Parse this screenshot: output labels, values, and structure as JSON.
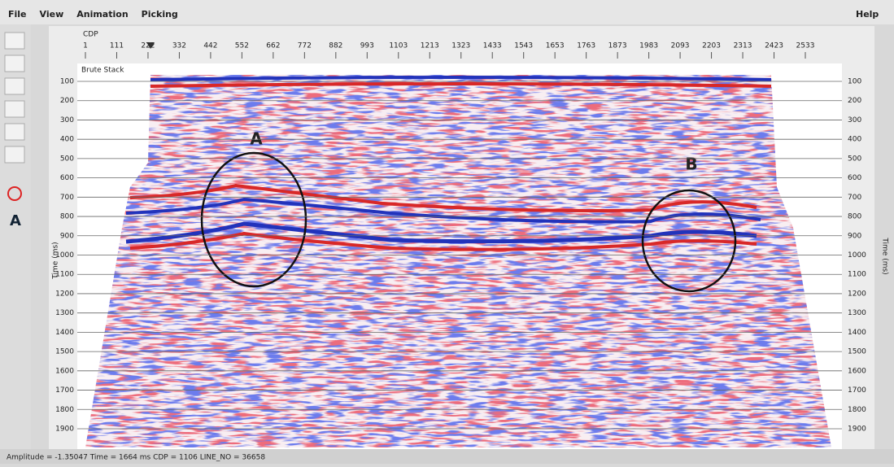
{
  "menu": {
    "items": [
      "File",
      "View",
      "Animation",
      "Picking"
    ],
    "help": "Help"
  },
  "top_axis": {
    "label": "CDP",
    "ticks": [
      "1",
      "111",
      "222",
      "332",
      "442",
      "552",
      "662",
      "772",
      "882",
      "993",
      "1103",
      "1213",
      "1323",
      "1433",
      "1543",
      "1653",
      "1763",
      "1873",
      "1983",
      "2093",
      "2203",
      "2313",
      "2423",
      "2533"
    ]
  },
  "panel": {
    "title": "Brute Stack",
    "y_label": "Time (ms)",
    "y_ticks": [
      "100",
      "200",
      "300",
      "400",
      "500",
      "600",
      "700",
      "800",
      "900",
      "1000",
      "1100",
      "1200",
      "1300",
      "1400",
      "1500",
      "1600",
      "1700",
      "1800",
      "1900"
    ],
    "annotations": [
      "A",
      "B"
    ]
  },
  "status": "Amplitude = -1.35047  Time = 1664 ms  CDP = 1106  LINE_NO = 36658"
}
